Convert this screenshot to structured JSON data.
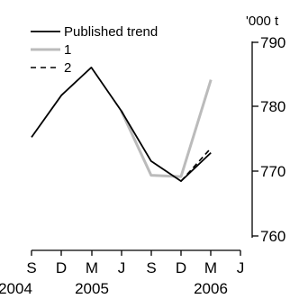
{
  "chart_data": {
    "type": "line",
    "x_tick_labels": [
      "S",
      "D",
      "M",
      "J",
      "S",
      "D",
      "M",
      "J"
    ],
    "x_year_labels": [
      "2004",
      "2005",
      "2006"
    ],
    "unit_label": "'000 t",
    "ylim": [
      760,
      790
    ],
    "y_ticks": [
      760,
      770,
      780,
      790
    ],
    "series": [
      {
        "name": "Published trend",
        "style": "solid",
        "color": "#000000",
        "values": [
          775.3,
          781.8,
          786.1,
          779.4,
          771.6,
          768.5,
          772.9
        ]
      },
      {
        "name": "1",
        "style": "solid",
        "color": "#bbbbbb",
        "values": [
          null,
          null,
          null,
          779.4,
          769.4,
          769.2,
          784.2
        ]
      },
      {
        "name": "2",
        "style": "dashed",
        "color": "#000000",
        "values": [
          null,
          null,
          null,
          null,
          null,
          768.5,
          773.6
        ]
      }
    ]
  }
}
